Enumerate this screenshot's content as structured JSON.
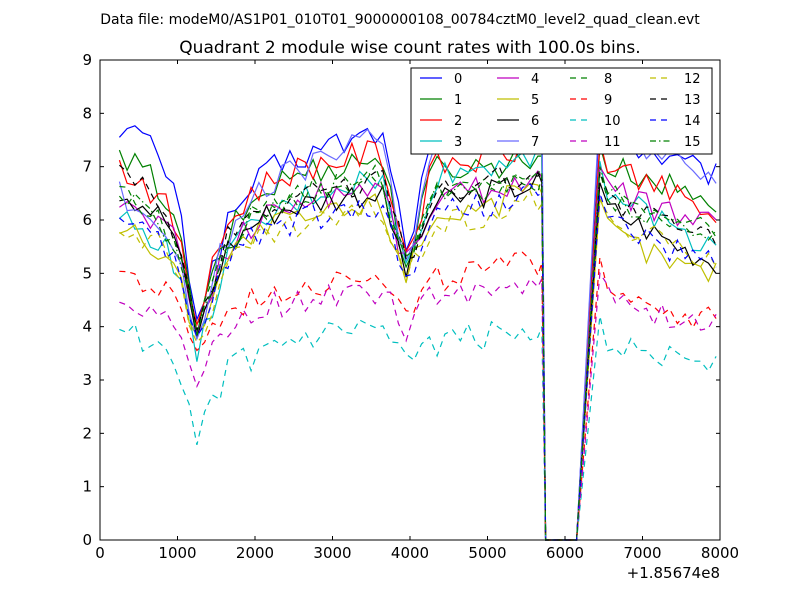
{
  "figure": {
    "suptitle": "Data file: modeM0/AS1P01_010T01_9000000108_00784cztM0_level2_quad_clean.evt",
    "title": "Quadrant 2 module wise count rates with 100.0s bins.",
    "x_offset_label": "+1.85674e8"
  },
  "chart_data": {
    "type": "line",
    "title": "Quadrant 2 module wise count rates with 100.0s bins.",
    "xlabel": "",
    "ylabel": "",
    "xlim": [
      0,
      8000
    ],
    "ylim": [
      0,
      9
    ],
    "x_ticks": [
      0,
      1000,
      2000,
      3000,
      4000,
      5000,
      6000,
      7000,
      8000
    ],
    "y_ticks": [
      0,
      1,
      2,
      3,
      4,
      5,
      6,
      7,
      8,
      9
    ],
    "x_offset": 185674000,
    "grid": false,
    "legend_position": "top-right",
    "legend_columns": 4,
    "gap": {
      "drop_start": 5700,
      "drop_bottom": 5750,
      "zero_end": 6150,
      "rise_end": 6450
    },
    "series": [
      {
        "name": "0",
        "color": "#0000ff",
        "style": "solid",
        "profile": [
          7.8,
          7.5,
          6.8,
          4.2,
          5.8,
          6.6,
          7.0,
          7.2,
          7.4,
          7.5,
          7.7,
          5.5,
          7.5,
          7.6,
          7.7,
          7.9,
          8.0,
          7.6,
          7.4,
          7.2,
          7.0,
          6.8
        ]
      },
      {
        "name": "1",
        "color": "#008000",
        "style": "solid",
        "profile": [
          7.1,
          6.9,
          6.3,
          3.9,
          5.6,
          6.3,
          6.7,
          6.9,
          7.0,
          7.1,
          7.2,
          5.1,
          7.0,
          7.0,
          7.0,
          7.1,
          7.2,
          7.0,
          6.9,
          6.7,
          6.5,
          6.3
        ]
      },
      {
        "name": "2",
        "color": "#ff0000",
        "style": "solid",
        "profile": [
          7.0,
          6.7,
          6.1,
          4.1,
          5.8,
          6.5,
          6.8,
          7.0,
          7.1,
          7.2,
          7.3,
          5.3,
          7.0,
          7.1,
          7.1,
          7.3,
          7.4,
          7.1,
          6.9,
          6.6,
          6.3,
          6.0
        ]
      },
      {
        "name": "3",
        "color": "#00bfbf",
        "style": "solid",
        "profile": [
          6.0,
          5.8,
          5.4,
          3.4,
          5.2,
          5.8,
          6.1,
          6.4,
          6.6,
          6.7,
          6.8,
          5.0,
          6.8,
          6.9,
          7.0,
          7.2,
          7.3,
          6.7,
          6.3,
          6.0,
          5.7,
          5.5
        ]
      },
      {
        "name": "4",
        "color": "#bf00bf",
        "style": "solid",
        "profile": [
          6.3,
          6.1,
          5.8,
          3.9,
          5.4,
          5.9,
          6.2,
          6.4,
          6.5,
          6.6,
          6.7,
          5.1,
          6.4,
          6.5,
          6.6,
          6.7,
          6.8,
          6.6,
          6.4,
          6.2,
          6.0,
          5.9
        ]
      },
      {
        "name": "5",
        "color": "#bfbf00",
        "style": "solid",
        "profile": [
          5.9,
          5.6,
          5.2,
          3.9,
          5.2,
          5.7,
          5.9,
          6.0,
          6.1,
          6.2,
          6.3,
          5.0,
          6.1,
          6.2,
          6.3,
          6.4,
          6.5,
          6.0,
          5.6,
          5.3,
          5.1,
          5.0
        ]
      },
      {
        "name": "6",
        "color": "#000000",
        "style": "solid",
        "profile": [
          6.6,
          6.3,
          5.9,
          3.8,
          5.4,
          5.9,
          6.2,
          6.3,
          6.4,
          6.5,
          6.5,
          5.0,
          6.3,
          6.4,
          6.5,
          6.6,
          6.7,
          6.3,
          6.0,
          5.7,
          5.4,
          5.2
        ]
      },
      {
        "name": "7",
        "color": "#6b6bff",
        "style": "solid",
        "profile": [
          6.5,
          6.2,
          5.7,
          3.8,
          5.6,
          6.3,
          6.7,
          7.0,
          7.2,
          7.4,
          7.5,
          5.2,
          7.4,
          7.7,
          7.9,
          8.2,
          8.4,
          7.8,
          7.4,
          7.2,
          7.0,
          6.8
        ]
      },
      {
        "name": "8",
        "color": "#008000",
        "style": "dashed",
        "profile": [
          6.5,
          6.2,
          5.8,
          3.9,
          5.5,
          6.0,
          6.3,
          6.5,
          6.6,
          6.7,
          6.8,
          5.2,
          6.5,
          6.5,
          6.6,
          6.7,
          6.8,
          6.5,
          6.3,
          6.1,
          5.9,
          5.7
        ]
      },
      {
        "name": "9",
        "color": "#ff0000",
        "style": "dashed",
        "profile": [
          5.0,
          4.8,
          4.5,
          3.6,
          4.2,
          4.5,
          4.7,
          4.8,
          4.9,
          5.0,
          5.1,
          4.1,
          4.9,
          5.0,
          5.0,
          5.1,
          5.2,
          4.9,
          4.6,
          4.4,
          4.2,
          4.1
        ]
      },
      {
        "name": "10",
        "color": "#00bfbf",
        "style": "dashed",
        "profile": [
          4.0,
          3.7,
          3.3,
          1.8,
          3.1,
          3.4,
          3.6,
          3.7,
          3.8,
          3.9,
          3.9,
          3.2,
          3.7,
          3.8,
          3.8,
          3.9,
          4.0,
          3.8,
          3.6,
          3.5,
          3.4,
          3.3
        ]
      },
      {
        "name": "11",
        "color": "#bf00bf",
        "style": "dashed",
        "profile": [
          4.6,
          4.4,
          4.1,
          2.9,
          3.9,
          4.2,
          4.4,
          4.5,
          4.6,
          4.7,
          4.7,
          3.9,
          4.6,
          4.7,
          4.7,
          4.8,
          4.9,
          4.6,
          4.4,
          4.2,
          4.1,
          4.0
        ]
      },
      {
        "name": "12",
        "color": "#bfbf00",
        "style": "dashed",
        "profile": [
          6.0,
          5.7,
          5.3,
          3.7,
          5.1,
          5.5,
          5.8,
          5.9,
          6.0,
          6.1,
          6.2,
          4.9,
          6.0,
          6.0,
          6.1,
          6.2,
          6.3,
          6.0,
          5.8,
          5.6,
          5.4,
          5.3
        ]
      },
      {
        "name": "13",
        "color": "#000000",
        "style": "dashed",
        "profile": [
          6.8,
          6.5,
          6.0,
          3.9,
          5.6,
          6.1,
          6.3,
          6.5,
          6.6,
          6.7,
          6.8,
          5.2,
          6.6,
          6.6,
          6.7,
          6.8,
          6.9,
          6.5,
          6.2,
          6.0,
          5.8,
          5.6
        ]
      },
      {
        "name": "14",
        "color": "#0000ff",
        "style": "dashed",
        "profile": [
          5.9,
          5.7,
          5.3,
          3.8,
          5.2,
          5.7,
          5.9,
          6.0,
          6.1,
          6.2,
          6.3,
          4.8,
          6.2,
          6.2,
          6.3,
          6.4,
          6.5,
          6.1,
          5.8,
          5.5,
          5.3,
          5.1
        ]
      },
      {
        "name": "15",
        "color": "#008000",
        "style": "dashdot",
        "profile": [
          6.4,
          6.1,
          5.7,
          3.8,
          5.4,
          6.0,
          6.3,
          6.5,
          6.6,
          6.7,
          6.8,
          5.1,
          6.6,
          6.6,
          6.7,
          6.8,
          6.9,
          6.6,
          6.3,
          6.1,
          5.9,
          5.7
        ]
      }
    ]
  }
}
